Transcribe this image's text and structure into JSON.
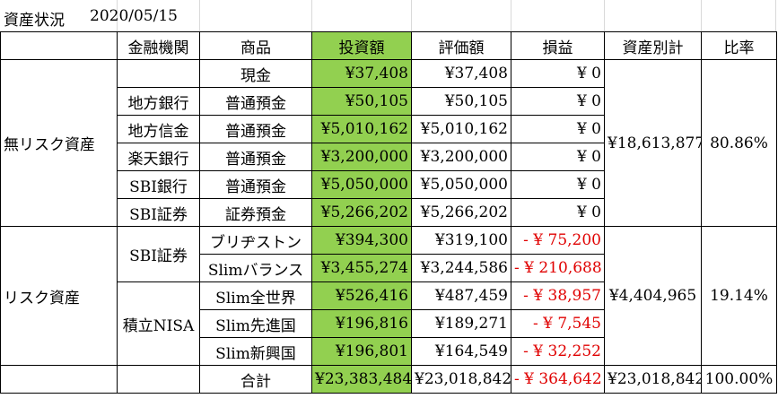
{
  "header": {
    "title": "資産状況",
    "date": "2020/05/15"
  },
  "table": {
    "columns": [
      "金融機関",
      "商品",
      "投資額",
      "評価額",
      "損益",
      "資産別計",
      "比率"
    ],
    "groups": [
      {
        "category": "無リスク資産",
        "subtotal": "¥18,613,877",
        "ratio": "80.86%",
        "institutions": [
          {
            "name": null,
            "rows": [
              {
                "product": "現金",
                "investment": "¥37,408",
                "valuation": "¥37,408",
                "profit": "¥ 0"
              }
            ]
          },
          {
            "name": "地方銀行",
            "rows": [
              {
                "product": "普通預金",
                "investment": "¥50,105",
                "valuation": "¥50,105",
                "profit": "¥ 0"
              }
            ]
          },
          {
            "name": "地方信金",
            "rows": [
              {
                "product": "普通預金",
                "investment": "¥5,010,162",
                "valuation": "¥5,010,162",
                "profit": "¥ 0"
              }
            ]
          },
          {
            "name": "楽天銀行",
            "rows": [
              {
                "product": "普通預金",
                "investment": "¥3,200,000",
                "valuation": "¥3,200,000",
                "profit": "¥ 0"
              }
            ]
          },
          {
            "name": "SBI銀行",
            "rows": [
              {
                "product": "普通預金",
                "investment": "¥5,050,000",
                "valuation": "¥5,050,000",
                "profit": "¥ 0"
              }
            ]
          },
          {
            "name": "SBI証券",
            "rows": [
              {
                "product": "証券預金",
                "investment": "¥5,266,202",
                "valuation": "¥5,266,202",
                "profit": "¥ 0"
              }
            ]
          }
        ]
      },
      {
        "category": "リスク資産",
        "subtotal": "¥4,404,965",
        "ratio": "19.14%",
        "institutions": [
          {
            "name": "SBI証券",
            "rows": [
              {
                "product": "ブリヂストン",
                "investment": "¥394,300",
                "valuation": "¥319,100",
                "profit": "- ¥ 75,200"
              },
              {
                "product": "Slimバランス",
                "investment": "¥3,455,274",
                "valuation": "¥3,244,586",
                "profit": "- ¥ 210,688"
              }
            ]
          },
          {
            "name": "積立NISA",
            "rows": [
              {
                "product": "Slim全世界",
                "investment": "¥526,416",
                "valuation": "¥487,459",
                "profit": "- ¥ 38,957"
              },
              {
                "product": "Slim先進国",
                "investment": "¥196,816",
                "valuation": "¥189,271",
                "profit": "- ¥ 7,545"
              },
              {
                "product": "Slim新興国",
                "investment": "¥196,801",
                "valuation": "¥164,549",
                "profit": "- ¥ 32,252"
              }
            ]
          }
        ]
      }
    ],
    "total": {
      "label": "合計",
      "investment": "¥23,383,484",
      "valuation": "¥23,018,842",
      "profit": "- ¥ 364,642",
      "subtotal": "¥23,018,842",
      "ratio": "100.00%"
    }
  }
}
